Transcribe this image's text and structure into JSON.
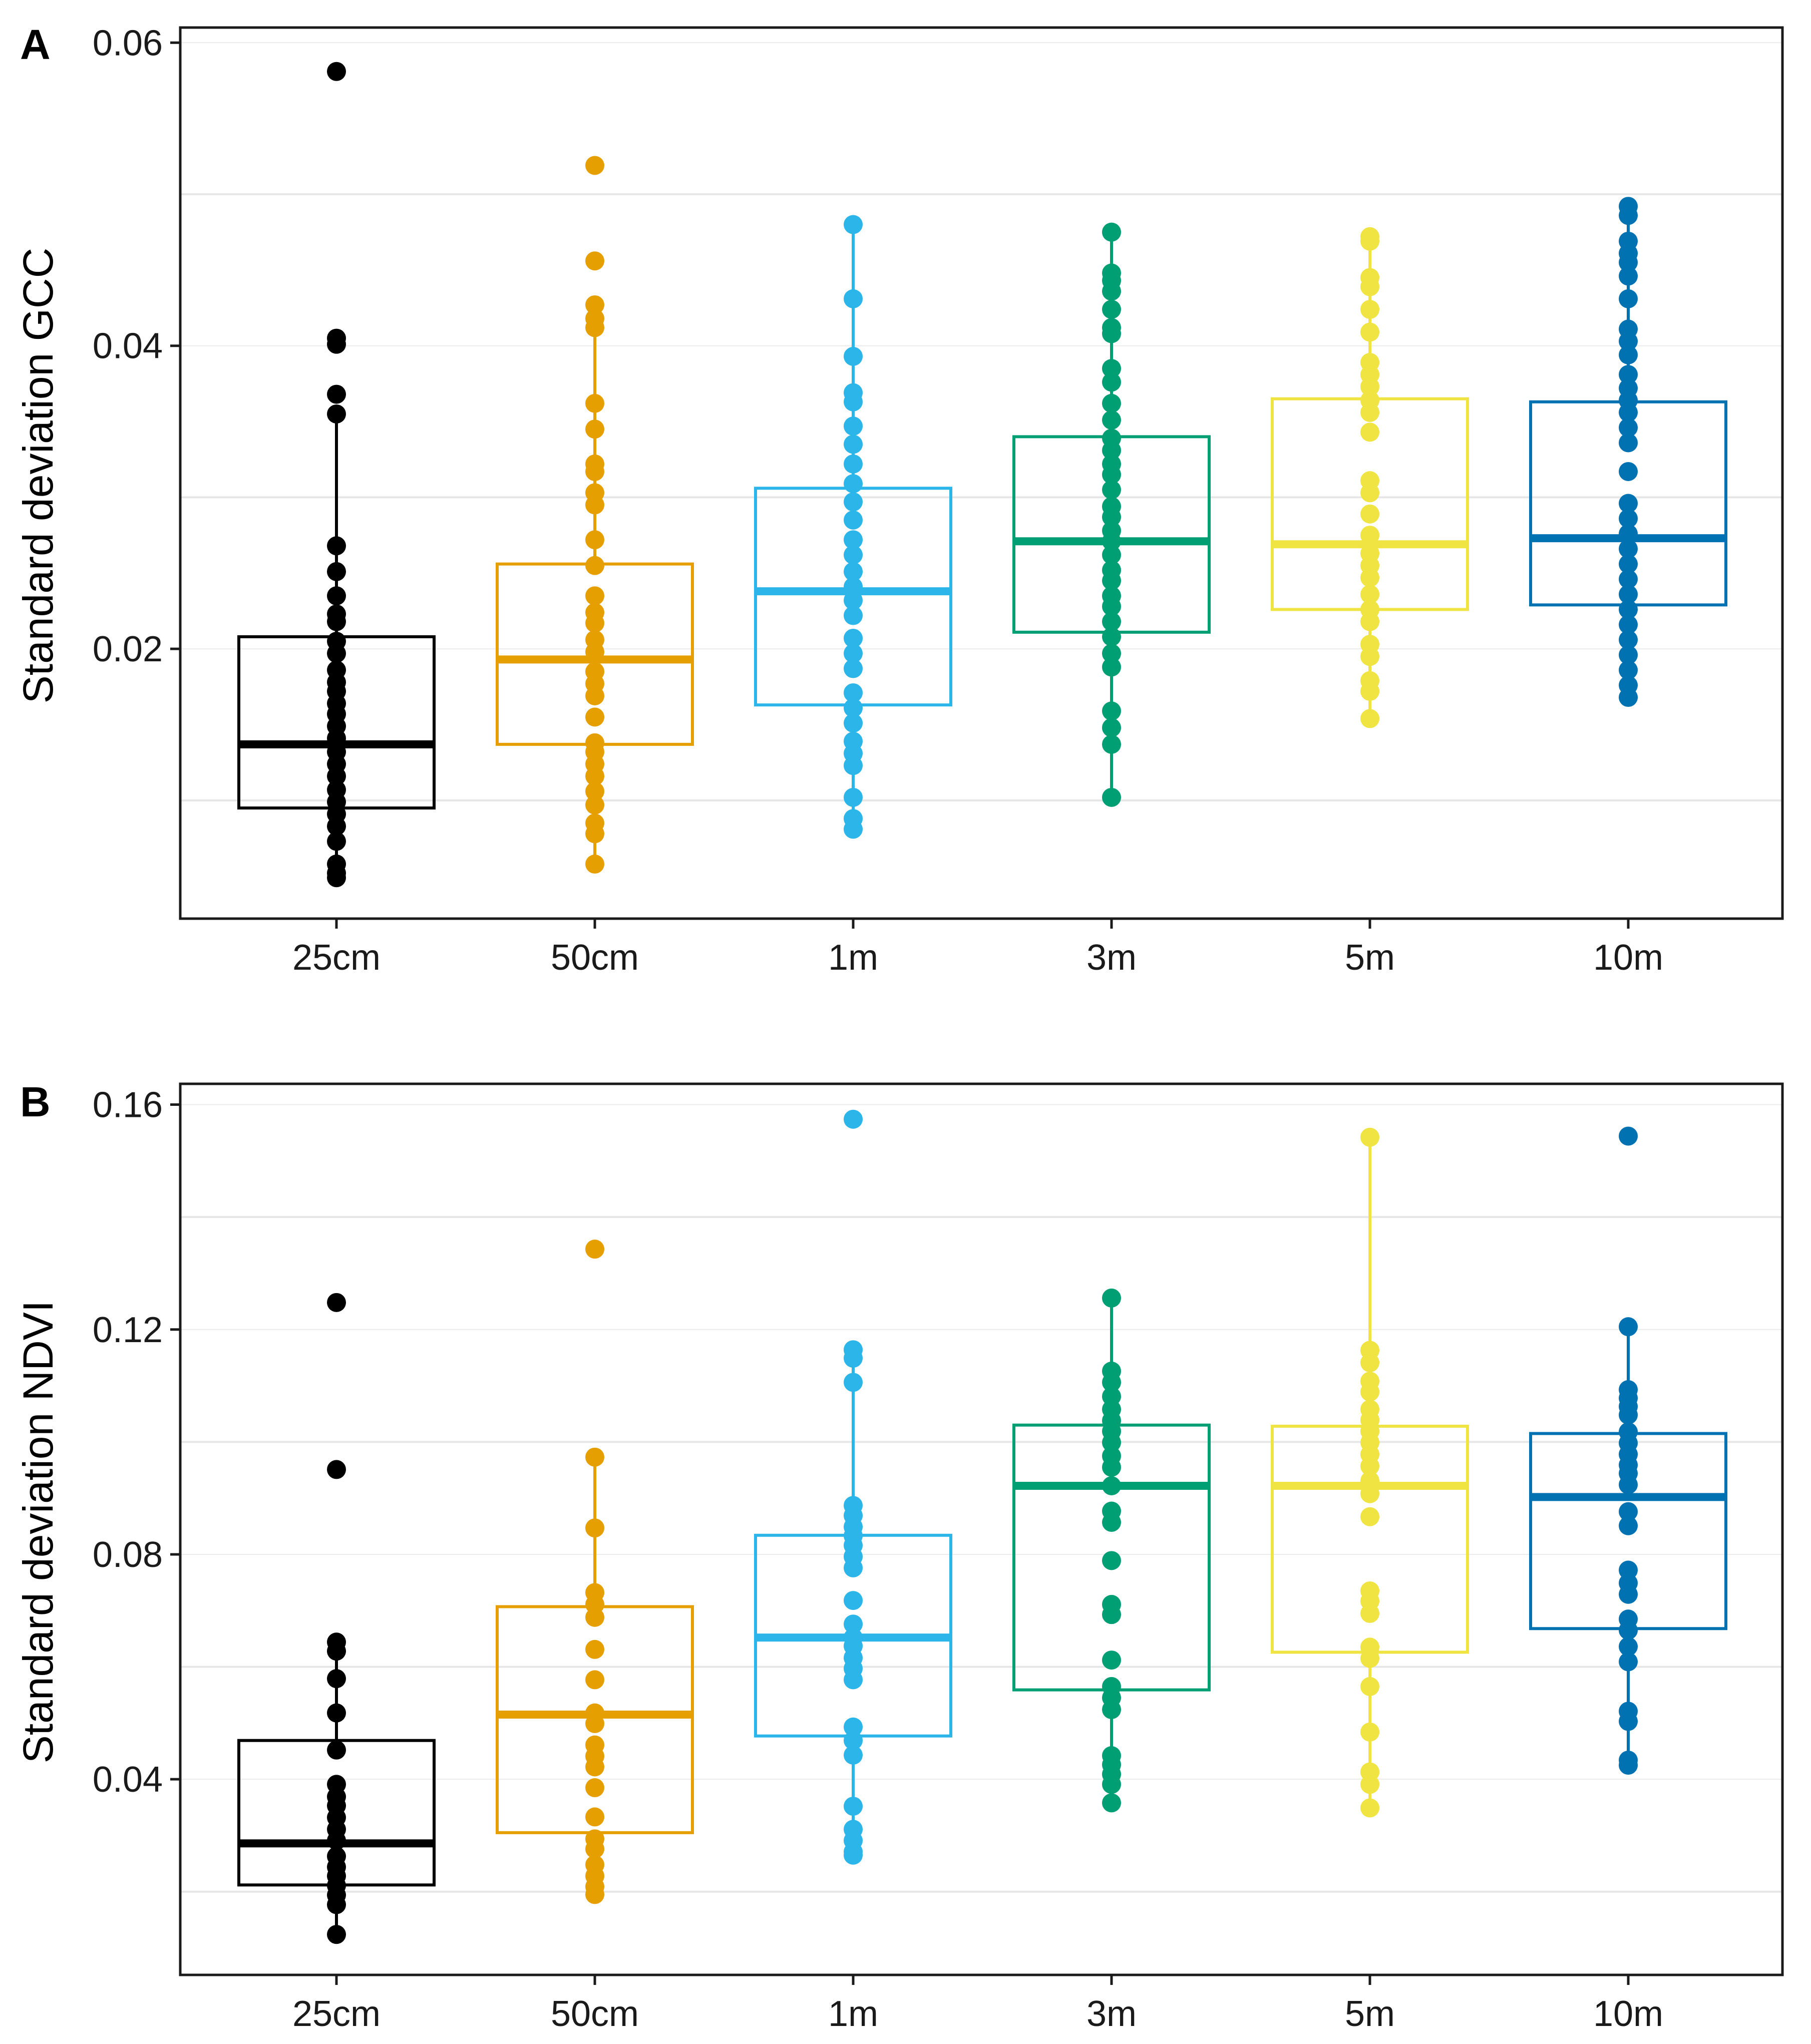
{
  "chart_data": [
    {
      "type": "box",
      "panel": "A",
      "ylabel": "Standard deviation GCC",
      "ylim": [
        0.0022,
        0.061
      ],
      "yticks": [
        "0.02",
        "0.04",
        "0.06"
      ],
      "ytick_values": [
        0.02,
        0.04,
        0.06
      ],
      "minor_grid": [
        0.01,
        0.03,
        0.05
      ],
      "categories": [
        "25cm",
        "50cm",
        "1m",
        "3m",
        "5m",
        "10m"
      ],
      "colors": [
        "#000000",
        "#E69F00",
        "#2BB5E8",
        "#009E73",
        "#F0E442",
        "#0072B2"
      ],
      "boxes": [
        {
          "q1": 0.0095,
          "median": 0.0137,
          "q3": 0.0208,
          "whisker_low": 0.0049,
          "whisker_high": 0.0355,
          "points": [
            0.0581,
            0.0405,
            0.0401,
            0.0368,
            0.0355,
            0.0268,
            0.0251,
            0.0235,
            0.0223,
            0.0218,
            0.0205,
            0.0197,
            0.0186,
            0.0178,
            0.0172,
            0.0164,
            0.0157,
            0.0149,
            0.0141,
            0.0132,
            0.0124,
            0.0116,
            0.0107,
            0.0099,
            0.0091,
            0.0083,
            0.0073,
            0.0058,
            0.0052,
            0.0049
          ]
        },
        {
          "q1": 0.0137,
          "median": 0.0193,
          "q3": 0.0256,
          "whisker_low": 0.0058,
          "whisker_high": 0.0415,
          "points": [
            0.0519,
            0.0456,
            0.0427,
            0.0418,
            0.0412,
            0.0362,
            0.0345,
            0.0322,
            0.0317,
            0.0303,
            0.0295,
            0.0272,
            0.0255,
            0.0235,
            0.0224,
            0.0217,
            0.0206,
            0.0198,
            0.0185,
            0.0177,
            0.0169,
            0.0155,
            0.0138,
            0.0132,
            0.0124,
            0.0116,
            0.0106,
            0.0097,
            0.0085,
            0.0078,
            0.0058
          ]
        },
        {
          "q1": 0.0163,
          "median": 0.0238,
          "q3": 0.0306,
          "whisker_low": 0.0078,
          "whisker_high": 0.048,
          "points": [
            0.048,
            0.0431,
            0.0393,
            0.0369,
            0.0363,
            0.0347,
            0.0335,
            0.0322,
            0.0309,
            0.0297,
            0.0285,
            0.0272,
            0.0262,
            0.0251,
            0.0241,
            0.0232,
            0.0222,
            0.0207,
            0.0197,
            0.0187,
            0.0171,
            0.0161,
            0.0151,
            0.0139,
            0.0131,
            0.0123,
            0.0102,
            0.0088,
            0.0081
          ]
        },
        {
          "q1": 0.0211,
          "median": 0.0271,
          "q3": 0.034,
          "whisker_low": 0.0102,
          "whisker_high": 0.0475,
          "points": [
            0.0475,
            0.0448,
            0.0443,
            0.0436,
            0.0424,
            0.0412,
            0.0408,
            0.0385,
            0.0376,
            0.0362,
            0.0351,
            0.0339,
            0.0331,
            0.0322,
            0.0315,
            0.0305,
            0.0294,
            0.0287,
            0.0278,
            0.0271,
            0.0262,
            0.0252,
            0.0245,
            0.0235,
            0.0228,
            0.0218,
            0.0208,
            0.0197,
            0.0188,
            0.0159,
            0.0148,
            0.0137,
            0.0102
          ]
        },
        {
          "q1": 0.0226,
          "median": 0.0269,
          "q3": 0.0365,
          "whisker_low": 0.0154,
          "whisker_high": 0.0472,
          "points": [
            0.0472,
            0.0469,
            0.0445,
            0.0439,
            0.0424,
            0.0409,
            0.0389,
            0.0381,
            0.0373,
            0.0364,
            0.0356,
            0.0343,
            0.0311,
            0.0303,
            0.0289,
            0.0275,
            0.0263,
            0.0255,
            0.0247,
            0.0236,
            0.0226,
            0.0218,
            0.0203,
            0.0195,
            0.0179,
            0.0172,
            0.0154
          ]
        },
        {
          "q1": 0.0229,
          "median": 0.0273,
          "q3": 0.0363,
          "whisker_low": 0.0168,
          "whisker_high": 0.0492,
          "points": [
            0.0492,
            0.0486,
            0.0469,
            0.0461,
            0.0455,
            0.0446,
            0.0431,
            0.0411,
            0.0403,
            0.0394,
            0.0381,
            0.0372,
            0.0364,
            0.0356,
            0.0346,
            0.0336,
            0.0317,
            0.0296,
            0.0286,
            0.0276,
            0.0266,
            0.0256,
            0.0246,
            0.0236,
            0.0226,
            0.0216,
            0.0206,
            0.0196,
            0.0186,
            0.0176,
            0.0168
          ]
        }
      ]
    },
    {
      "type": "box",
      "panel": "B",
      "ylabel": "Standard deviation NDVI",
      "ylim": [
        0.0052,
        0.1637
      ],
      "yticks": [
        "0.04",
        "0.08",
        "0.12",
        "0.16"
      ],
      "ytick_values": [
        0.04,
        0.08,
        0.12,
        0.16
      ],
      "minor_grid": [
        0.02,
        0.06,
        0.1,
        0.14
      ],
      "categories": [
        "25cm",
        "50cm",
        "1m",
        "3m",
        "5m",
        "10m"
      ],
      "colors": [
        "#000000",
        "#E69F00",
        "#2BB5E8",
        "#009E73",
        "#F0E442",
        "#0072B2"
      ],
      "boxes": [
        {
          "q1": 0.0212,
          "median": 0.0286,
          "q3": 0.0469,
          "whisker_low": 0.0124,
          "whisker_high": 0.0644,
          "points": [
            0.1248,
            0.0951,
            0.0644,
            0.0628,
            0.0579,
            0.0518,
            0.0452,
            0.0391,
            0.0369,
            0.0353,
            0.0332,
            0.0311,
            0.0291,
            0.0263,
            0.0244,
            0.0228,
            0.0211,
            0.0194,
            0.0177,
            0.0124
          ]
        },
        {
          "q1": 0.0305,
          "median": 0.0515,
          "q3": 0.0707,
          "whisker_low": 0.0195,
          "whisker_high": 0.0973,
          "points": [
            0.1343,
            0.0973,
            0.0847,
            0.0732,
            0.0711,
            0.0688,
            0.0631,
            0.0577,
            0.0518,
            0.0499,
            0.0461,
            0.0441,
            0.0422,
            0.0385,
            0.0333,
            0.0294,
            0.0276,
            0.0248,
            0.0228,
            0.0209,
            0.0195
          ]
        },
        {
          "q1": 0.0477,
          "median": 0.0652,
          "q3": 0.0834,
          "whisker_low": 0.0265,
          "whisker_high": 0.1164,
          "points": [
            0.1574,
            0.1164,
            0.1149,
            0.1106,
            0.0887,
            0.0869,
            0.0849,
            0.0833,
            0.0816,
            0.0796,
            0.0776,
            0.0718,
            0.0676,
            0.0652,
            0.0637,
            0.0616,
            0.0597,
            0.0577,
            0.0493,
            0.0469,
            0.0443,
            0.0352,
            0.0311,
            0.0291,
            0.0271,
            0.0265
          ]
        },
        {
          "q1": 0.0559,
          "median": 0.0922,
          "q3": 0.103,
          "whisker_low": 0.0358,
          "whisker_high": 0.1256,
          "points": [
            0.1256,
            0.1126,
            0.1106,
            0.1081,
            0.1058,
            0.1038,
            0.1019,
            0.0999,
            0.0975,
            0.0955,
            0.0922,
            0.0877,
            0.0857,
            0.0789,
            0.0711,
            0.0693,
            0.0612,
            0.0565,
            0.0545,
            0.0524,
            0.0442,
            0.0426,
            0.0409,
            0.0391,
            0.0358
          ]
        },
        {
          "q1": 0.0626,
          "median": 0.0922,
          "q3": 0.1028,
          "whisker_low": 0.0349,
          "whisker_high": 0.1542,
          "points": [
            0.1542,
            0.1163,
            0.1141,
            0.1108,
            0.1089,
            0.1058,
            0.1039,
            0.1019,
            0.0999,
            0.0978,
            0.0957,
            0.0931,
            0.0908,
            0.0867,
            0.0735,
            0.0717,
            0.0695,
            0.0635,
            0.0615,
            0.0565,
            0.0484,
            0.0413,
            0.0391,
            0.0349
          ]
        },
        {
          "q1": 0.0668,
          "median": 0.0902,
          "q3": 0.1015,
          "whisker_low": 0.0425,
          "whisker_high": 0.1205,
          "points": [
            0.1544,
            0.1205,
            0.1093,
            0.1078,
            0.1063,
            0.1048,
            0.1018,
            0.0998,
            0.0978,
            0.0959,
            0.0944,
            0.0924,
            0.0876,
            0.0851,
            0.0772,
            0.0749,
            0.0729,
            0.0685,
            0.0665,
            0.0636,
            0.0609,
            0.0521,
            0.0503,
            0.0434,
            0.0425
          ]
        }
      ]
    }
  ]
}
